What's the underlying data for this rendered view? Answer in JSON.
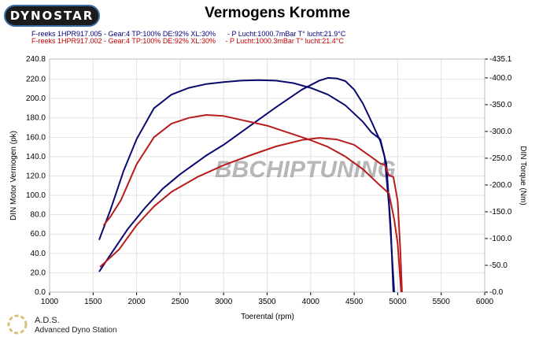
{
  "header": {
    "logo": "DYNOSTAR",
    "title": "Vermogens Kromme"
  },
  "legend": [
    {
      "text": "F-reeks 1HPR917.005 - Gear:4 TP:100% DE:92% XL:30%      - P Lucht:1000.7mBar T° lucht:21.9°C",
      "color": "#000080"
    },
    {
      "text": "F-reeks 1HPR917.002 - Gear:4 TP:100% DE:92% XL:30%     - P Lucht:1000.3mBar T° lucht:21.4°C",
      "color": "#c00000"
    }
  ],
  "footer": {
    "brand": "A.D.S.",
    "subtitle": "Advanced Dyno Station"
  },
  "watermark": "BBCHIPTUNING",
  "chart_data": {
    "type": "line",
    "title": "Vermogens Kromme",
    "xlabel": "Toerental (rpm)",
    "ylabel": "DIN Motor Vermogen (pk)",
    "y2label": "DIN Torque (Nm)",
    "xlim": [
      1000,
      6000
    ],
    "ylim": [
      0,
      240.8
    ],
    "y2lim": [
      0,
      435.1
    ],
    "xticks": [
      "1000",
      "1500",
      "2000",
      "2500",
      "3000",
      "3500",
      "4000",
      "4500",
      "5000",
      "5500",
      "6000"
    ],
    "yticks": [
      "0.0",
      "20.0",
      "40.0",
      "60.0",
      "80.0",
      "100.0",
      "120.0",
      "140.0",
      "160.0",
      "180.0",
      "200.0",
      "220.0",
      "240.8"
    ],
    "y2ticks": [
      "-0.0",
      "-50.0",
      "-100.0",
      "-150.0",
      "-200.0",
      "-250.0",
      "-300.0",
      "-350.0",
      "-400.0",
      "-435.1"
    ],
    "series": [
      {
        "name": "1HPR917.005 power",
        "axis": "left",
        "color": "#0a0a6e",
        "points": [
          [
            1570,
            54
          ],
          [
            1700,
            85
          ],
          [
            1850,
            125
          ],
          [
            2000,
            158
          ],
          [
            2200,
            190
          ],
          [
            2400,
            204
          ],
          [
            2600,
            211
          ],
          [
            2800,
            215
          ],
          [
            3000,
            217
          ],
          [
            3200,
            218.5
          ],
          [
            3400,
            219
          ],
          [
            3600,
            218.5
          ],
          [
            3800,
            216
          ],
          [
            4000,
            211
          ],
          [
            4200,
            204
          ],
          [
            4400,
            193
          ],
          [
            4600,
            176
          ],
          [
            4700,
            165
          ],
          [
            4800,
            158
          ],
          [
            4850,
            140
          ],
          [
            4900,
            90
          ],
          [
            4960,
            0
          ]
        ]
      },
      {
        "name": "1HPR917.005 torque",
        "axis": "right",
        "color": "#0a0a6e",
        "points": [
          [
            1570,
            38
          ],
          [
            1700,
            70
          ],
          [
            1900,
            118
          ],
          [
            2100,
            158
          ],
          [
            2300,
            193
          ],
          [
            2500,
            220
          ],
          [
            2800,
            255
          ],
          [
            3000,
            275
          ],
          [
            3300,
            310
          ],
          [
            3600,
            345
          ],
          [
            3900,
            378
          ],
          [
            4100,
            395
          ],
          [
            4200,
            400
          ],
          [
            4300,
            399
          ],
          [
            4400,
            394
          ],
          [
            4500,
            378
          ],
          [
            4600,
            352
          ],
          [
            4700,
            318
          ],
          [
            4800,
            282
          ],
          [
            4870,
            240
          ],
          [
            4920,
            120
          ],
          [
            4950,
            0
          ]
        ]
      },
      {
        "name": "1HPR917.002 power",
        "axis": "left",
        "color": "#b81c1c",
        "points": [
          [
            1620,
            69
          ],
          [
            1700,
            78
          ],
          [
            1820,
            95
          ],
          [
            2000,
            132
          ],
          [
            2200,
            160
          ],
          [
            2400,
            174
          ],
          [
            2600,
            180
          ],
          [
            2800,
            183
          ],
          [
            3000,
            182
          ],
          [
            3200,
            178
          ],
          [
            3500,
            172
          ],
          [
            3800,
            163
          ],
          [
            4000,
            157
          ],
          [
            4200,
            150
          ],
          [
            4400,
            140
          ],
          [
            4600,
            127
          ],
          [
            4800,
            110
          ],
          [
            4900,
            102
          ],
          [
            4960,
            75
          ],
          [
            5000,
            50
          ],
          [
            5040,
            0
          ]
        ]
      },
      {
        "name": "1HPR917.002 torque",
        "axis": "right",
        "color": "#b81c1c",
        "points": [
          [
            1580,
            47
          ],
          [
            1800,
            80
          ],
          [
            2000,
            125
          ],
          [
            2200,
            160
          ],
          [
            2400,
            187
          ],
          [
            2700,
            215
          ],
          [
            3000,
            237
          ],
          [
            3300,
            255
          ],
          [
            3600,
            272
          ],
          [
            3900,
            284
          ],
          [
            4100,
            288
          ],
          [
            4300,
            285
          ],
          [
            4500,
            275
          ],
          [
            4700,
            252
          ],
          [
            4800,
            240
          ],
          [
            4850,
            238
          ],
          [
            4900,
            218
          ],
          [
            4950,
            215
          ],
          [
            5000,
            170
          ],
          [
            5030,
            80
          ],
          [
            5050,
            0
          ]
        ]
      }
    ]
  }
}
